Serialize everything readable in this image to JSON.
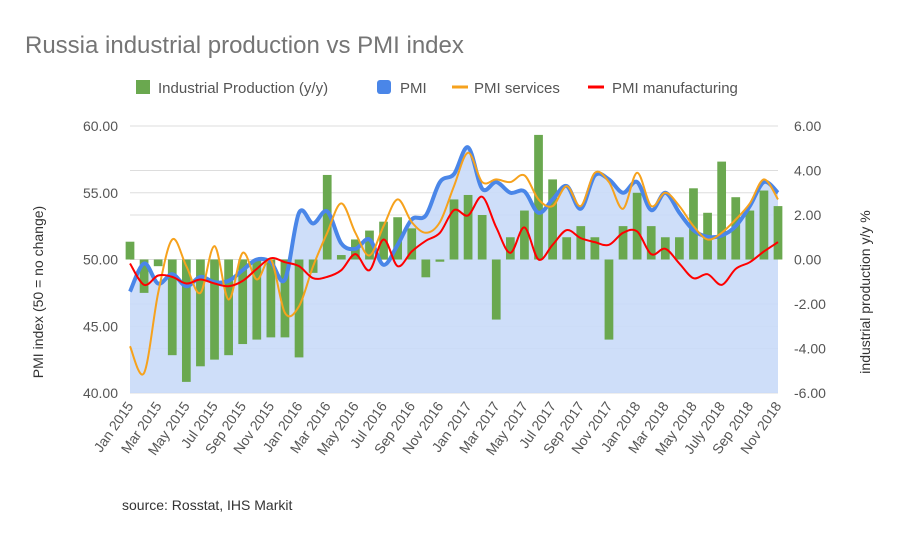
{
  "chart_data": {
    "type": "combo",
    "title": "Russia industrial production vs PMI index",
    "source": "source: Rosstat, IHS Markit",
    "y_left": {
      "label": "PMI index (50 = no change)",
      "ticks": [
        "40.00",
        "45.00",
        "50.00",
        "55.00",
        "60.00"
      ],
      "range": [
        40,
        60
      ]
    },
    "y_right": {
      "label": "industrial production y/y %",
      "ticks": [
        "-6.00",
        "-4.00",
        "-2.00",
        "0.00",
        "2.00",
        "4.00",
        "6.00"
      ],
      "range": [
        -6,
        6
      ]
    },
    "x_tick_labels": [
      "Jan 2015",
      "Mar 2015",
      "May 2015",
      "Jul 2015",
      "Sep 2015",
      "Nov 2015",
      "Jan 2016",
      "Mar 2016",
      "May 2016",
      "Jul 2016",
      "Sep 2016",
      "Nov 2016",
      "Jan 2017",
      "Mar 2017",
      "May 2017",
      "Jul 2017",
      "Sep 2017",
      "Nov 2017",
      "Jan 2018",
      "Mar 2018",
      "May 2018",
      "July 2018",
      "Sep 2018",
      "Nov 2018"
    ],
    "months": 47,
    "series": [
      {
        "name": "Industrial Production (y/y)",
        "type": "bar",
        "axis": "right",
        "color": "#6aa84f",
        "values": [
          0.8,
          -1.5,
          -0.3,
          -4.3,
          -5.5,
          -4.8,
          -4.5,
          -4.3,
          -3.8,
          -3.6,
          -3.5,
          -3.5,
          -4.4,
          -0.6,
          3.8,
          0.2,
          0.9,
          1.3,
          1.7,
          1.9,
          1.4,
          -0.8,
          -0.1,
          2.7,
          2.9,
          2.0,
          -2.7,
          1.0,
          2.2,
          5.6,
          3.6,
          1.0,
          1.5,
          1.0,
          -3.6,
          1.5,
          3.0,
          1.5,
          1.0,
          1.0,
          3.2,
          2.1,
          4.4,
          2.8,
          2.2,
          3.1,
          2.4
        ]
      },
      {
        "name": "PMI",
        "type": "area",
        "axis": "left",
        "color": "#4a86e8",
        "fill": "#c9daf8",
        "values": [
          47.6,
          49.7,
          48.2,
          48.9,
          48.0,
          48.7,
          48.3,
          48.4,
          49.2,
          50.0,
          49.8,
          48.5,
          53.5,
          52.7,
          53.6,
          51.2,
          50.8,
          51.5,
          49.6,
          51.1,
          53.0,
          53.3,
          55.8,
          56.4,
          58.4,
          55.3,
          55.8,
          55.0,
          55.1,
          53.5,
          54.5,
          55.5,
          53.8,
          56.3,
          56.0,
          55.0,
          55.8,
          53.7,
          55.0,
          53.5,
          52.2,
          51.7,
          51.8,
          52.5,
          54.0,
          55.8,
          55.0
        ]
      },
      {
        "name": "PMI services",
        "type": "line",
        "axis": "left",
        "color": "#f6a21d",
        "values": [
          43.5,
          41.5,
          47.5,
          51.5,
          49.5,
          47.5,
          51.0,
          47.0,
          50.5,
          48.5,
          50.0,
          46.0,
          46.5,
          49.5,
          52.0,
          54.2,
          52.0,
          50.3,
          52.5,
          54.5,
          52.8,
          52.0,
          52.8,
          55.5,
          58.0,
          55.8,
          56.0,
          55.8,
          56.3,
          54.5,
          54.0,
          55.5,
          54.0,
          56.5,
          55.8,
          53.8,
          56.5,
          54.0,
          55.0,
          54.0,
          52.5,
          51.5,
          52.0,
          53.0,
          54.2,
          56.0,
          54.5
        ]
      },
      {
        "name": "PMI manufacturing",
        "type": "line",
        "axis": "left",
        "color": "#ff0000",
        "values": [
          49.7,
          48.1,
          48.8,
          48.7,
          48.2,
          48.5,
          48.2,
          48.0,
          48.4,
          49.3,
          50.1,
          49.8,
          49.5,
          48.6,
          48.7,
          49.2,
          50.4,
          49.2,
          51.5,
          49.5,
          50.6,
          51.4,
          52.0,
          53.7,
          53.3,
          54.7,
          52.4,
          50.5,
          52.4,
          50.0,
          51.1,
          52.2,
          51.6,
          51.3,
          51.1,
          52.0,
          52.1,
          50.4,
          50.8,
          49.7,
          48.6,
          48.9,
          48.1,
          49.3,
          49.8,
          50.6,
          51.3
        ]
      }
    ]
  }
}
